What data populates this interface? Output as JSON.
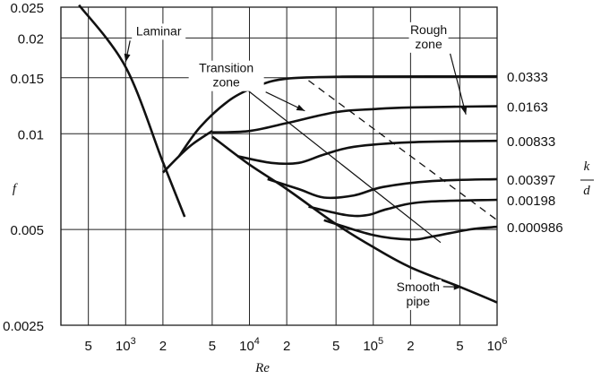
{
  "chart_data": {
    "type": "line",
    "title": "",
    "xlabel": "Re",
    "ylabel": "f",
    "right_label_num": "k",
    "right_label_den": "d",
    "x_scale": "log",
    "y_scale": "log",
    "xlim": [
      300,
      1000000
    ],
    "ylim": [
      0.0025,
      0.025
    ],
    "grid": true,
    "x_ticks": [
      {
        "value": 500,
        "major": false,
        "label": "5"
      },
      {
        "value": 1000,
        "major": true,
        "base": "10",
        "exp": "3"
      },
      {
        "value": 2000,
        "major": false,
        "label": "2"
      },
      {
        "value": 5000,
        "major": false,
        "label": "5"
      },
      {
        "value": 10000,
        "major": true,
        "base": "10",
        "exp": "4"
      },
      {
        "value": 20000,
        "major": false,
        "label": "2"
      },
      {
        "value": 50000,
        "major": false,
        "label": "5"
      },
      {
        "value": 100000,
        "major": true,
        "base": "10",
        "exp": "5"
      },
      {
        "value": 200000,
        "major": false,
        "label": "2"
      },
      {
        "value": 500000,
        "major": false,
        "label": "5"
      },
      {
        "value": 1000000,
        "major": true,
        "base": "10",
        "exp": "6"
      }
    ],
    "y_ticks": [
      {
        "value": 0.0025,
        "label": "0.0025"
      },
      {
        "value": 0.005,
        "label": "0.005"
      },
      {
        "value": 0.01,
        "label": "0.01"
      },
      {
        "value": 0.015,
        "label": "0.015"
      },
      {
        "value": 0.02,
        "label": "0.02"
      },
      {
        "value": 0.025,
        "label": "0.025"
      }
    ],
    "series": [
      {
        "label": "",
        "style": "solid",
        "points": [
          [
            420,
            0.0254
          ],
          [
            1000,
            0.0162
          ],
          [
            2000,
            0.00814
          ],
          [
            3000,
            0.00548
          ]
        ]
      },
      {
        "label": "",
        "style": "solid",
        "points": [
          [
            2000,
            0.00755
          ],
          [
            2700,
            0.0085
          ],
          [
            3500,
            0.0093
          ],
          [
            5000,
            0.0102
          ]
        ]
      },
      {
        "label": "",
        "style": "solid",
        "points": [
          [
            5000,
            0.0098
          ],
          [
            10000,
            0.008
          ],
          [
            20000,
            0.0067
          ],
          [
            50000,
            0.0052
          ],
          [
            100000,
            0.0044
          ],
          [
            200000,
            0.0038
          ],
          [
            500000,
            0.0033
          ],
          [
            1000000,
            0.00295
          ]
        ]
      },
      {
        "label": "0.0333",
        "style": "solid",
        "points": [
          [
            2700,
            0.0085
          ],
          [
            4000,
            0.0105
          ],
          [
            7000,
            0.0128
          ],
          [
            12000,
            0.0142
          ],
          [
            20000,
            0.0149
          ],
          [
            50000,
            0.0151
          ],
          [
            100000,
            0.01513
          ],
          [
            1000000,
            0.01515
          ]
        ]
      },
      {
        "label": "0.0163",
        "style": "solid",
        "points": [
          [
            5000,
            0.0101
          ],
          [
            10000,
            0.0102
          ],
          [
            20000,
            0.0108
          ],
          [
            50000,
            0.0117
          ],
          [
            100000,
            0.01195
          ],
          [
            200000,
            0.0121
          ],
          [
            1000000,
            0.0122
          ]
        ]
      },
      {
        "label": "0.00833",
        "style": "solid",
        "points": [
          [
            8000,
            0.0085
          ],
          [
            15000,
            0.0081
          ],
          [
            25000,
            0.0081
          ],
          [
            40000,
            0.0086
          ],
          [
            70000,
            0.0091
          ],
          [
            200000,
            0.0094
          ],
          [
            1000000,
            0.0095
          ]
        ]
      },
      {
        "label": "0.00397",
        "style": "solid",
        "points": [
          [
            14000,
            0.0072
          ],
          [
            25000,
            0.0067
          ],
          [
            40000,
            0.0063
          ],
          [
            70000,
            0.0064
          ],
          [
            120000,
            0.0068
          ],
          [
            300000,
            0.0071
          ],
          [
            1000000,
            0.0072
          ]
        ]
      },
      {
        "label": "0.00198",
        "style": "solid",
        "points": [
          [
            30000,
            0.0059
          ],
          [
            60000,
            0.00555
          ],
          [
            90000,
            0.00555
          ],
          [
            130000,
            0.0058
          ],
          [
            250000,
            0.0061
          ],
          [
            1000000,
            0.0062
          ]
        ]
      },
      {
        "label": "0.000986",
        "style": "solid",
        "points": [
          [
            40000,
            0.00535
          ],
          [
            100000,
            0.0048
          ],
          [
            200000,
            0.00465
          ],
          [
            300000,
            0.00475
          ],
          [
            600000,
            0.005
          ],
          [
            1000000,
            0.0051
          ]
        ]
      },
      {
        "label": "",
        "style": "dashed",
        "points": [
          [
            30000,
            0.0147
          ],
          [
            1000000,
            0.00535
          ]
        ]
      },
      {
        "label": "",
        "style": "solid-thin",
        "points": [
          [
            9000,
            0.014
          ],
          [
            350000,
            0.00455
          ]
        ]
      }
    ],
    "annotations": [
      {
        "lines": [
          "Laminar"
        ],
        "at": [
          1850,
          0.0204
        ],
        "anchor": "middle",
        "arrow_to": [
          1000,
          0.0168
        ]
      },
      {
        "lines": [
          "Transition",
          "zone"
        ],
        "at": [
          6500,
          0.0156
        ],
        "anchor": "middle",
        "arrow_to": [
          28000,
          0.0118
        ]
      },
      {
        "lines": [
          "Rough",
          "zone"
        ],
        "at": [
          280000,
          0.0206
        ],
        "anchor": "middle",
        "arrow_to": [
          560000,
          0.0115
        ]
      },
      {
        "lines": [
          "Smooth",
          "pipe"
        ],
        "at": [
          230000,
          0.0032
        ],
        "anchor": "middle",
        "arrow_to": [
          520000,
          0.0033
        ]
      }
    ]
  }
}
